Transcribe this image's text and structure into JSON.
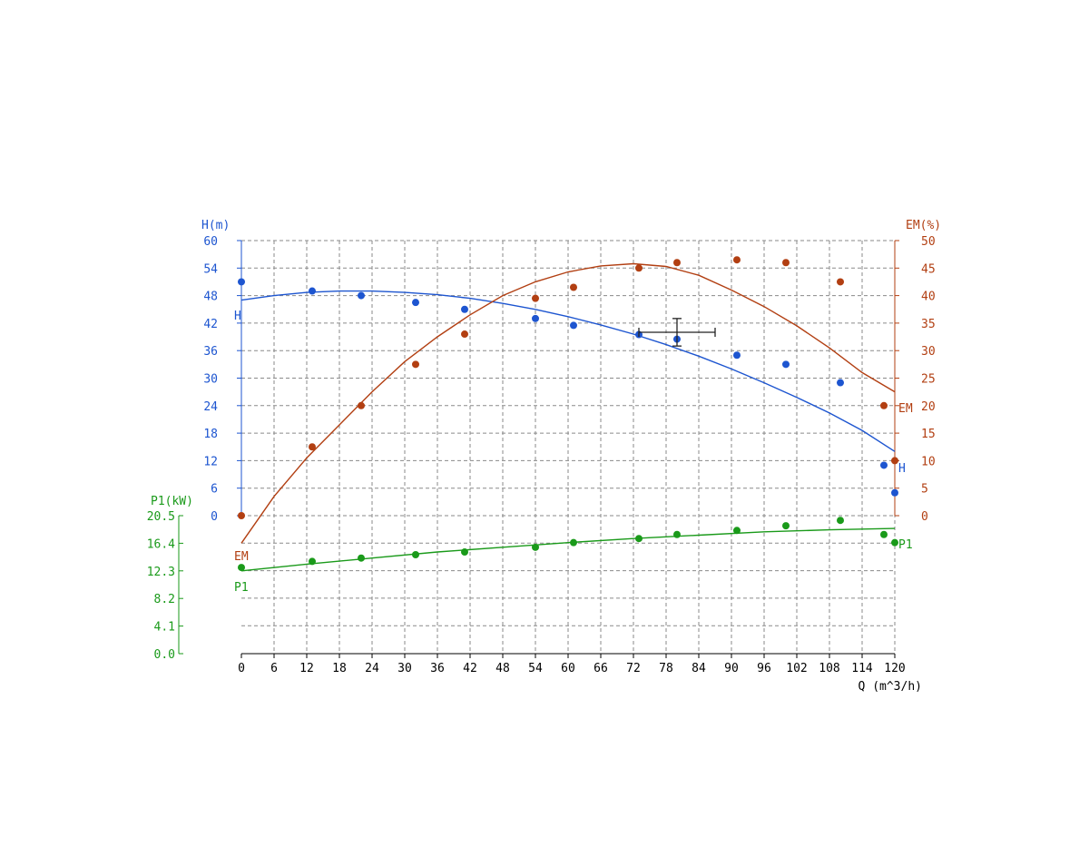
{
  "chart_data": {
    "type": "scatter",
    "x_axis": {
      "label": "Q (m^3/h)",
      "ticks": [
        0,
        6,
        12,
        18,
        24,
        30,
        36,
        42,
        48,
        54,
        60,
        66,
        72,
        78,
        84,
        90,
        96,
        102,
        108,
        114,
        120
      ],
      "range": [
        0,
        120
      ]
    },
    "axes": {
      "H": {
        "label": "H(m)",
        "color": "#1d55d0",
        "range": [
          0,
          60
        ],
        "ticks": [
          "0",
          "6",
          "12",
          "18",
          "24",
          "30",
          "36",
          "42",
          "48",
          "54",
          "60"
        ]
      },
      "EM": {
        "label": "EM(%)",
        "color": "#b23f12",
        "range": [
          0,
          50
        ],
        "ticks": [
          "0",
          "5",
          "10",
          "15",
          "20",
          "25",
          "30",
          "35",
          "40",
          "45",
          "50"
        ]
      },
      "P1": {
        "label": "P1(kW)",
        "color": "#1a9a1a",
        "range": [
          0,
          20.5
        ],
        "ticks": [
          "0.0",
          "4.1",
          "8.2",
          "12.3",
          "16.4",
          "20.5"
        ]
      }
    },
    "series": [
      {
        "name": "H",
        "axis": "H",
        "points": [
          [
            0,
            51
          ],
          [
            13,
            49
          ],
          [
            22,
            48
          ],
          [
            32,
            46.5
          ],
          [
            41,
            45
          ],
          [
            54,
            43
          ],
          [
            61,
            41.5
          ],
          [
            73,
            39.5
          ],
          [
            80,
            38.5
          ],
          [
            91,
            35
          ],
          [
            100,
            33
          ],
          [
            110,
            29
          ],
          [
            118,
            11
          ],
          [
            120,
            5
          ]
        ],
        "fit": [
          [
            0,
            47
          ],
          [
            6,
            48
          ],
          [
            12,
            48.7
          ],
          [
            18,
            49
          ],
          [
            24,
            49
          ],
          [
            30,
            48.7
          ],
          [
            36,
            48.2
          ],
          [
            42,
            47.4
          ],
          [
            48,
            46.3
          ],
          [
            54,
            45
          ],
          [
            60,
            43.4
          ],
          [
            66,
            41.6
          ],
          [
            72,
            39.6
          ],
          [
            78,
            37.3
          ],
          [
            84,
            34.8
          ],
          [
            90,
            32
          ],
          [
            96,
            29
          ],
          [
            102,
            25.8
          ],
          [
            108,
            22.4
          ],
          [
            114,
            18.6
          ],
          [
            120,
            14
          ]
        ]
      },
      {
        "name": "EM",
        "axis": "EM",
        "points": [
          [
            0,
            0
          ],
          [
            13,
            12.5
          ],
          [
            22,
            20
          ],
          [
            32,
            27.5
          ],
          [
            41,
            33
          ],
          [
            54,
            39.5
          ],
          [
            61,
            41.5
          ],
          [
            73,
            45
          ],
          [
            80,
            46
          ],
          [
            91,
            46.5
          ],
          [
            100,
            46
          ],
          [
            110,
            42.5
          ],
          [
            118,
            20
          ],
          [
            120,
            10
          ]
        ],
        "fit": [
          [
            0,
            -5
          ],
          [
            6,
            3.5
          ],
          [
            12,
            10.5
          ],
          [
            18,
            16.5
          ],
          [
            24,
            22.5
          ],
          [
            30,
            28
          ],
          [
            36,
            32.5
          ],
          [
            42,
            36.5
          ],
          [
            48,
            40
          ],
          [
            54,
            42.5
          ],
          [
            60,
            44.3
          ],
          [
            66,
            45.4
          ],
          [
            72,
            45.8
          ],
          [
            78,
            45.3
          ],
          [
            84,
            43.7
          ],
          [
            90,
            41
          ],
          [
            96,
            38
          ],
          [
            102,
            34.5
          ],
          [
            108,
            30.5
          ],
          [
            114,
            26
          ],
          [
            120,
            22.5
          ]
        ]
      },
      {
        "name": "P1",
        "axis": "P1",
        "points": [
          [
            0,
            12.8
          ],
          [
            13,
            13.7
          ],
          [
            22,
            14.2
          ],
          [
            32,
            14.7
          ],
          [
            41,
            15.1
          ],
          [
            54,
            15.8
          ],
          [
            61,
            16.5
          ],
          [
            73,
            17.1
          ],
          [
            80,
            17.7
          ],
          [
            91,
            18.3
          ],
          [
            100,
            19
          ],
          [
            110,
            19.8
          ],
          [
            118,
            17.7
          ],
          [
            120,
            16.5
          ]
        ],
        "fit": [
          [
            0,
            12.3
          ],
          [
            12,
            13.3
          ],
          [
            24,
            14.2
          ],
          [
            36,
            15.1
          ],
          [
            48,
            15.8
          ],
          [
            60,
            16.5
          ],
          [
            72,
            17.1
          ],
          [
            84,
            17.6
          ],
          [
            96,
            18.1
          ],
          [
            108,
            18.4
          ],
          [
            120,
            18.6
          ]
        ]
      }
    ],
    "operating_point": {
      "x": 80,
      "y": 40,
      "x_err": [
        73,
        87
      ],
      "y_err": [
        37,
        43
      ]
    },
    "grid": true
  }
}
